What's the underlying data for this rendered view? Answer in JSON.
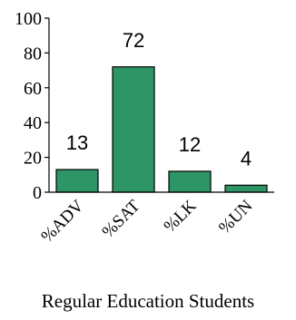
{
  "chart_data": {
    "type": "bar",
    "categories": [
      "%ADV",
      "%SAT",
      "%LK",
      "%UN"
    ],
    "values": [
      13,
      72,
      12,
      4
    ],
    "data_labels": [
      "13",
      "72",
      "12",
      "4"
    ],
    "title": "",
    "xlabel": "Regular Education Students",
    "ylabel": "",
    "ylim": [
      0,
      100
    ],
    "yticks": [
      "0",
      "20",
      "40",
      "60",
      "80",
      "100"
    ],
    "grid": false,
    "legend": "none",
    "bar_color": "#2e9566",
    "bar_edge_color": "#000000"
  }
}
